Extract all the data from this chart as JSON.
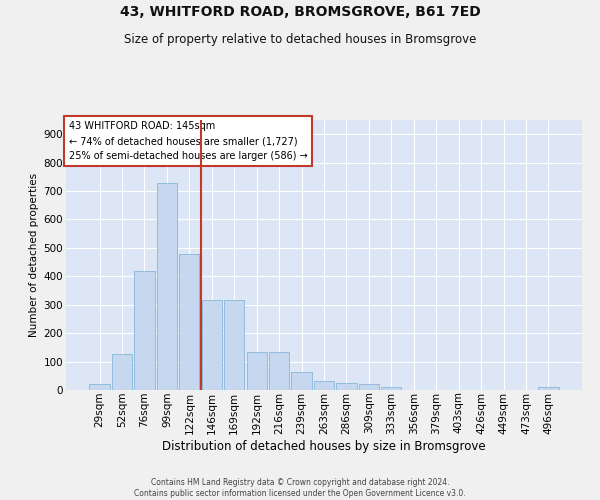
{
  "title": "43, WHITFORD ROAD, BROMSGROVE, B61 7ED",
  "subtitle": "Size of property relative to detached houses in Bromsgrove",
  "xlabel": "Distribution of detached houses by size in Bromsgrove",
  "ylabel": "Number of detached properties",
  "categories": [
    "29sqm",
    "52sqm",
    "76sqm",
    "99sqm",
    "122sqm",
    "146sqm",
    "169sqm",
    "192sqm",
    "216sqm",
    "239sqm",
    "263sqm",
    "286sqm",
    "309sqm",
    "333sqm",
    "356sqm",
    "379sqm",
    "403sqm",
    "426sqm",
    "449sqm",
    "473sqm",
    "496sqm"
  ],
  "bar_heights": [
    20,
    125,
    420,
    730,
    480,
    315,
    315,
    135,
    135,
    65,
    30,
    25,
    20,
    10,
    0,
    0,
    0,
    0,
    0,
    0,
    10
  ],
  "bar_color": "#c5d8f0",
  "bar_edge_color": "#7bafd4",
  "plot_bg_color": "#dce6f5",
  "fig_bg_color": "#f0f0f0",
  "grid_color": "#ffffff",
  "vline_x": 4.5,
  "vline_color": "#c0392b",
  "annotation_text": "43 WHITFORD ROAD: 145sqm\n← 74% of detached houses are smaller (1,727)\n25% of semi-detached houses are larger (586) →",
  "annotation_box_facecolor": "#ffffff",
  "annotation_box_edgecolor": "#c0392b",
  "ylim": [
    0,
    950
  ],
  "yticks": [
    0,
    100,
    200,
    300,
    400,
    500,
    600,
    700,
    800,
    900
  ],
  "title_fontsize": 10,
  "subtitle_fontsize": 8.5,
  "ylabel_fontsize": 7.5,
  "xlabel_fontsize": 8.5,
  "tick_fontsize": 7.5,
  "annot_fontsize": 7,
  "footer_line1": "Contains HM Land Registry data © Crown copyright and database right 2024.",
  "footer_line2": "Contains public sector information licensed under the Open Government Licence v3.0."
}
